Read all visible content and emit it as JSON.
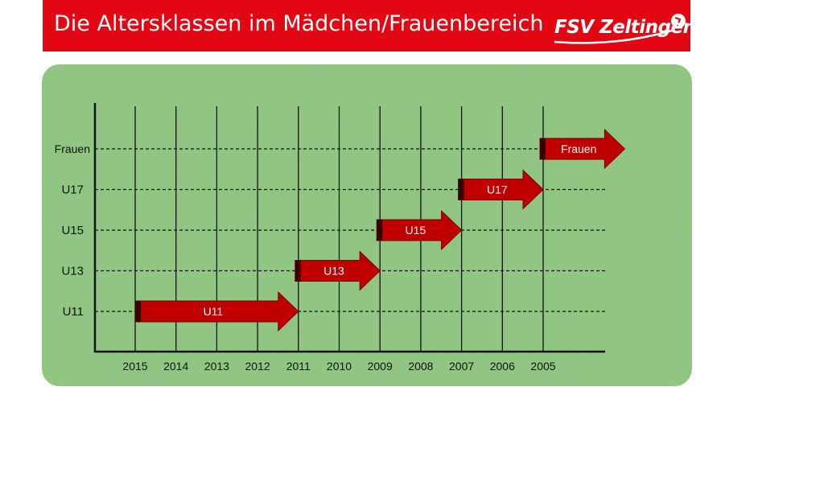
{
  "header": {
    "title": "Die Altersklassen im Mädchen/Frauenbereich",
    "logo_text": "FSV Zeltingen",
    "bg_color": "#e30613"
  },
  "chart_data": {
    "type": "diagram",
    "years": [
      "2015",
      "2014",
      "2013",
      "2012",
      "2011",
      "2010",
      "2009",
      "2008",
      "2007",
      "2006",
      "2005"
    ],
    "classes": [
      "Frauen",
      "U17",
      "U15",
      "U13",
      "U11"
    ],
    "arrows": [
      {
        "label": "U11",
        "row": "U11",
        "from": "2015",
        "to": "2011"
      },
      {
        "label": "U13",
        "row": "U13",
        "from": "2011",
        "to": "2009"
      },
      {
        "label": "U15",
        "row": "U15",
        "from": "2009",
        "to": "2007"
      },
      {
        "label": "U17",
        "row": "U17",
        "from": "2007",
        "to": "2005"
      },
      {
        "label": "Frauen",
        "row": "Frauen",
        "from": "2005",
        "to": ""
      }
    ],
    "arrow_color": "#c00000",
    "grass_color": "#8fc67f"
  }
}
